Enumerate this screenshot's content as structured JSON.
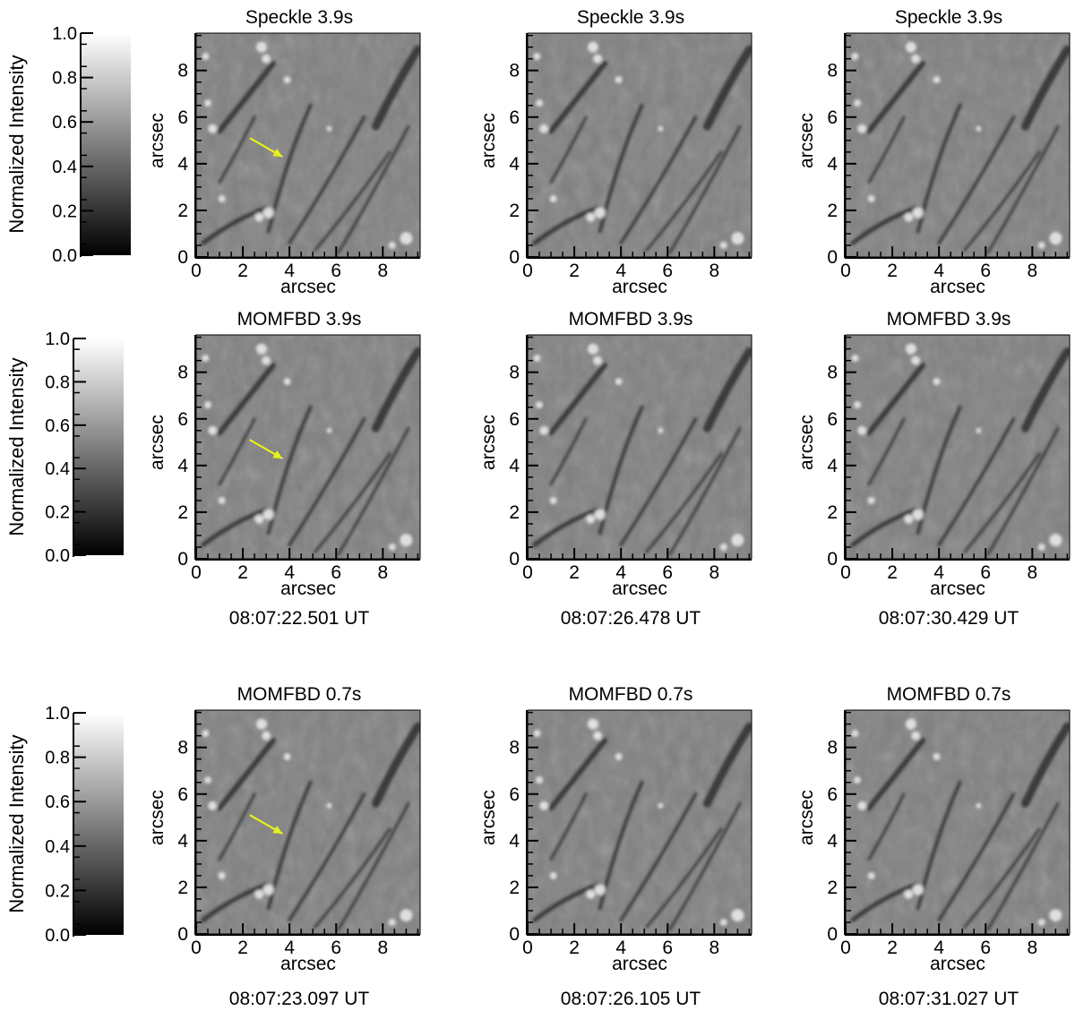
{
  "chart_data": [
    {
      "type": "heatmap",
      "title": "Speckle 3.9s",
      "xlabel": "arcsec",
      "ylabel": "arcsec",
      "xlim": [
        0,
        9.6
      ],
      "ylim": [
        0,
        9.6
      ],
      "x_ticks": [
        "0",
        "2",
        "4",
        "6",
        "8"
      ],
      "y_ticks": [
        "0",
        "2",
        "4",
        "6",
        "8"
      ],
      "arrow": {
        "from": [
          2.3,
          5.1
        ],
        "to": [
          3.7,
          4.3
        ],
        "color": "#e6f21a"
      },
      "timestamp": ""
    },
    {
      "type": "heatmap",
      "title": "Speckle  3.9s",
      "xlabel": "arcsec",
      "ylabel": "arcsec",
      "xlim": [
        0,
        9.6
      ],
      "ylim": [
        0,
        9.6
      ],
      "x_ticks": [
        "0",
        "2",
        "4",
        "6",
        "8"
      ],
      "y_ticks": [
        "0",
        "2",
        "4",
        "6",
        "8"
      ],
      "arrow": null,
      "timestamp": ""
    },
    {
      "type": "heatmap",
      "title": "Speckle  3.9s",
      "xlabel": "arcsec",
      "ylabel": "arcsec",
      "xlim": [
        0,
        9.6
      ],
      "ylim": [
        0,
        9.6
      ],
      "x_ticks": [
        "0",
        "2",
        "4",
        "6",
        "8"
      ],
      "y_ticks": [
        "0",
        "2",
        "4",
        "6",
        "8"
      ],
      "arrow": null,
      "timestamp": ""
    },
    {
      "type": "heatmap",
      "title": "MOMFBD 3.9s",
      "xlabel": "arcsec",
      "ylabel": "arcsec",
      "xlim": [
        0,
        9.6
      ],
      "ylim": [
        0,
        9.6
      ],
      "x_ticks": [
        "0",
        "2",
        "4",
        "6",
        "8"
      ],
      "y_ticks": [
        "0",
        "2",
        "4",
        "6",
        "8"
      ],
      "arrow": {
        "from": [
          2.3,
          5.1
        ],
        "to": [
          3.7,
          4.3
        ],
        "color": "#e6f21a"
      },
      "timestamp": "08:07:22.501 UT"
    },
    {
      "type": "heatmap",
      "title": "MOMFBD 3.9s",
      "xlabel": "arcsec",
      "ylabel": "arcsec",
      "xlim": [
        0,
        9.6
      ],
      "ylim": [
        0,
        9.6
      ],
      "x_ticks": [
        "0",
        "2",
        "4",
        "6",
        "8"
      ],
      "y_ticks": [
        "0",
        "2",
        "4",
        "6",
        "8"
      ],
      "arrow": null,
      "timestamp": "08:07:26.478 UT"
    },
    {
      "type": "heatmap",
      "title": "MOMFBD 3.9s",
      "xlabel": "arcsec",
      "ylabel": "arcsec",
      "xlim": [
        0,
        9.6
      ],
      "ylim": [
        0,
        9.6
      ],
      "x_ticks": [
        "0",
        "2",
        "4",
        "6",
        "8"
      ],
      "y_ticks": [
        "0",
        "2",
        "4",
        "6",
        "8"
      ],
      "arrow": null,
      "timestamp": "08:07:30.429 UT"
    },
    {
      "type": "heatmap",
      "title": "MOMFBD 0.7s",
      "xlabel": "arcsec",
      "ylabel": "arcsec",
      "xlim": [
        0,
        9.6
      ],
      "ylim": [
        0,
        9.6
      ],
      "x_ticks": [
        "0",
        "2",
        "4",
        "6",
        "8"
      ],
      "y_ticks": [
        "0",
        "2",
        "4",
        "6",
        "8"
      ],
      "arrow": {
        "from": [
          2.3,
          5.1
        ],
        "to": [
          3.7,
          4.3
        ],
        "color": "#e6f21a"
      },
      "timestamp": "08:07:23.097 UT"
    },
    {
      "type": "heatmap",
      "title": "MOMFBD 0.7s",
      "xlabel": "arcsec",
      "ylabel": "arcsec",
      "xlim": [
        0,
        9.6
      ],
      "ylim": [
        0,
        9.6
      ],
      "x_ticks": [
        "0",
        "2",
        "4",
        "6",
        "8"
      ],
      "y_ticks": [
        "0",
        "2",
        "4",
        "6",
        "8"
      ],
      "arrow": null,
      "timestamp": "08:07:26.105 UT"
    },
    {
      "type": "heatmap",
      "title": "MOMFBD 0.7s",
      "xlabel": "arcsec",
      "ylabel": "arcsec",
      "xlim": [
        0,
        9.6
      ],
      "ylim": [
        0,
        9.6
      ],
      "x_ticks": [
        "0",
        "2",
        "4",
        "6",
        "8"
      ],
      "y_ticks": [
        "0",
        "2",
        "4",
        "6",
        "8"
      ],
      "arrow": null,
      "timestamp": "08:07:31.027 UT"
    }
  ],
  "colorbars": [
    {
      "label": "Normalized Intensity",
      "range": [
        0.0,
        1.0
      ],
      "ticks": [
        "0.0",
        "0.2",
        "0.4",
        "0.6",
        "0.8",
        "1.0"
      ]
    },
    {
      "label": "Normalized Intensity",
      "range": [
        0.0,
        1.0
      ],
      "ticks": [
        "0.0",
        "0.2",
        "0.4",
        "0.6",
        "0.8",
        "1.0"
      ]
    },
    {
      "label": "Normalized Intensity",
      "range": [
        0.0,
        1.0
      ],
      "ticks": [
        "0.0",
        "0.2",
        "0.4",
        "0.6",
        "0.8",
        "1.0"
      ]
    }
  ],
  "colors": {
    "image_mid_gray": "#808080",
    "fibril_dark": "#2e2e2e",
    "bright_point": "#e8e8e8",
    "arrow": "#e6f21a"
  }
}
